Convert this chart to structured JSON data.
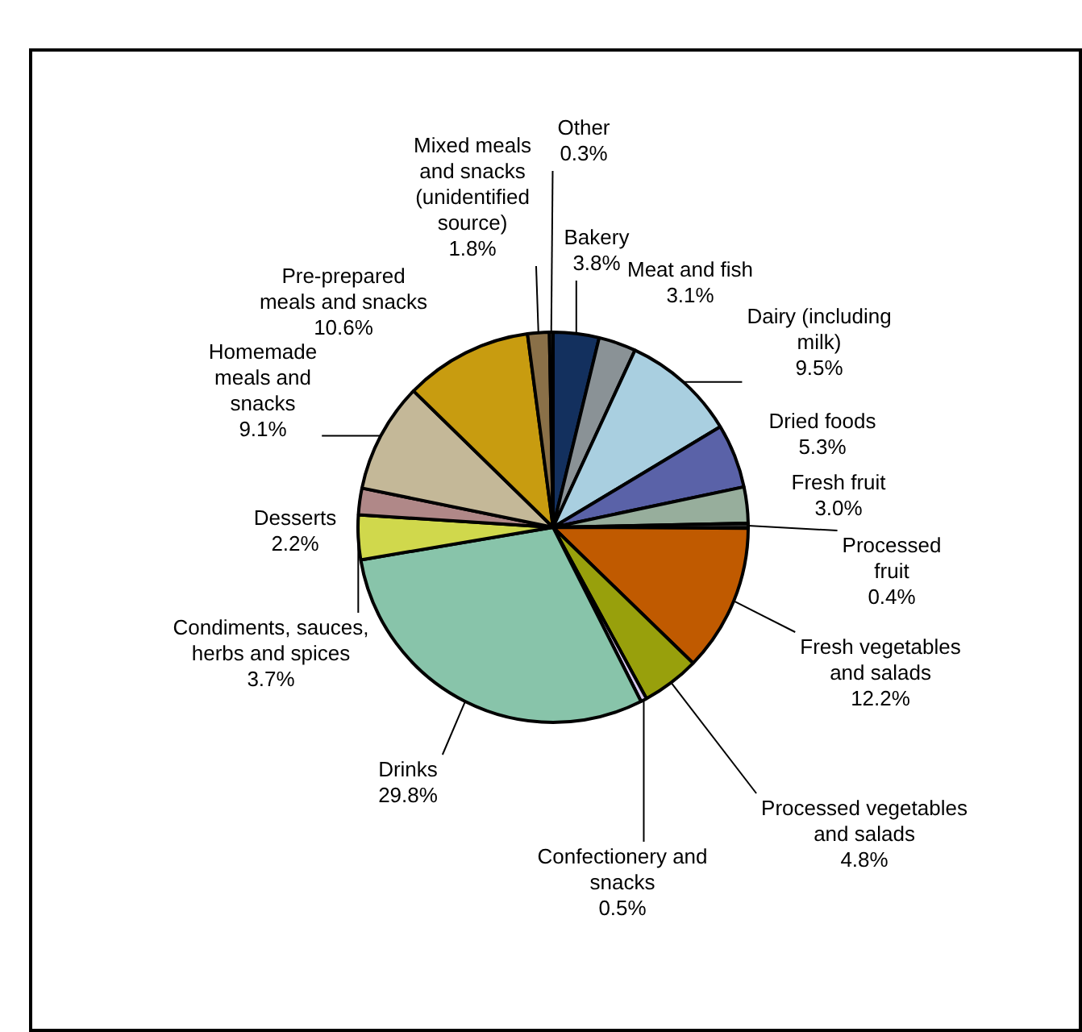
{
  "chart_data": {
    "type": "pie",
    "categories": [
      "Bakery",
      "Meat and fish",
      "Dairy (including milk)",
      "Dried foods",
      "Fresh fruit",
      "Processed fruit",
      "Fresh vegetables and salads",
      "Processed vegetables and salads",
      "Confectionery and snacks",
      "Drinks",
      "Condiments, sauces, herbs and spices",
      "Desserts",
      "Homemade meals and snacks",
      "Pre-prepared meals and snacks",
      "Mixed meals and snacks (unidentified source)",
      "Other"
    ],
    "values": [
      3.8,
      3.1,
      9.5,
      5.3,
      3.0,
      0.4,
      12.2,
      4.8,
      0.5,
      29.8,
      3.7,
      2.2,
      9.1,
      10.6,
      1.8,
      0.3
    ],
    "value_labels": [
      "3.8%",
      "3.1%",
      "9.5%",
      "5.3%",
      "3.0%",
      "0.4%",
      "12.2%",
      "4.8%",
      "0.5%",
      "29.8%",
      "3.7%",
      "2.2%",
      "9.1%",
      "10.6%",
      "1.8%",
      "0.3%"
    ],
    "colors": [
      "#13305e",
      "#8a9296",
      "#a9cfe0",
      "#5a62a8",
      "#97ae9c",
      "#2b2b2b",
      "#c05a00",
      "#98a00c",
      "#d8c8f0",
      "#88c4aa",
      "#d0d84c",
      "#b08888",
      "#c4b898",
      "#c89c10",
      "#8a7048",
      "#303030"
    ],
    "legend": false
  }
}
